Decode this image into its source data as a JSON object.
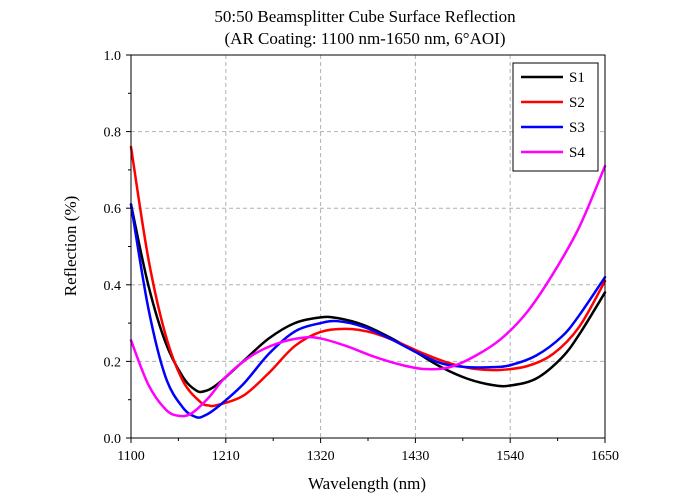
{
  "chart_data": {
    "type": "line",
    "title": "50:50 Beamsplitter Cube  Surface Reflection",
    "subtitle": "(AR Coating: 1100 nm-1650 nm, 6°AOI)",
    "xlabel": "Wavelength (nm)",
    "ylabel": "Reflection (%)",
    "xlim": [
      1100,
      1650
    ],
    "ylim": [
      0.0,
      1.0
    ],
    "xticks": [
      1100,
      1210,
      1320,
      1430,
      1540,
      1650
    ],
    "yticks": [
      0.0,
      0.2,
      0.4,
      0.6,
      0.8,
      1.0
    ],
    "xtick_labels": [
      "1100",
      "1210",
      "1320",
      "1430",
      "1540",
      "1650"
    ],
    "ytick_labels": [
      "0.0",
      "0.2",
      "0.4",
      "0.6",
      "0.8",
      "1.0"
    ],
    "grid": true,
    "legend_position": "top-right",
    "series": [
      {
        "name": "S1",
        "color": "#000000",
        "x": [
          1100,
          1120,
          1140,
          1160,
          1175,
          1185,
          1200,
          1230,
          1260,
          1290,
          1320,
          1340,
          1370,
          1400,
          1430,
          1460,
          1490,
          1520,
          1540,
          1570,
          1600,
          1620,
          1650
        ],
        "y": [
          0.61,
          0.4,
          0.25,
          0.16,
          0.125,
          0.122,
          0.14,
          0.2,
          0.26,
          0.3,
          0.315,
          0.313,
          0.295,
          0.263,
          0.225,
          0.185,
          0.155,
          0.138,
          0.137,
          0.155,
          0.21,
          0.27,
          0.38
        ]
      },
      {
        "name": "S2",
        "color": "#ff0000",
        "x": [
          1100,
          1120,
          1140,
          1160,
          1180,
          1190,
          1200,
          1230,
          1260,
          1290,
          1320,
          1350,
          1380,
          1410,
          1440,
          1470,
          1500,
          1530,
          1560,
          1590,
          1620,
          1650
        ],
        "y": [
          0.76,
          0.47,
          0.27,
          0.15,
          0.095,
          0.085,
          0.086,
          0.11,
          0.17,
          0.24,
          0.277,
          0.285,
          0.275,
          0.25,
          0.22,
          0.195,
          0.18,
          0.178,
          0.188,
          0.22,
          0.29,
          0.41
        ]
      },
      {
        "name": "S3",
        "color": "#0000ff",
        "x": [
          1100,
          1120,
          1140,
          1160,
          1175,
          1185,
          1200,
          1230,
          1260,
          1290,
          1320,
          1340,
          1370,
          1400,
          1430,
          1460,
          1490,
          1520,
          1540,
          1570,
          1600,
          1620,
          1650
        ],
        "y": [
          0.61,
          0.34,
          0.16,
          0.08,
          0.055,
          0.058,
          0.08,
          0.14,
          0.22,
          0.278,
          0.3,
          0.305,
          0.29,
          0.26,
          0.225,
          0.195,
          0.185,
          0.185,
          0.19,
          0.215,
          0.265,
          0.32,
          0.42
        ]
      },
      {
        "name": "S4",
        "color": "#ff00ff",
        "x": [
          1100,
          1120,
          1140,
          1155,
          1170,
          1190,
          1210,
          1240,
          1270,
          1300,
          1320,
          1350,
          1380,
          1410,
          1440,
          1470,
          1500,
          1530,
          1560,
          1590,
          1620,
          1650
        ],
        "y": [
          0.255,
          0.14,
          0.075,
          0.058,
          0.064,
          0.105,
          0.16,
          0.215,
          0.247,
          0.262,
          0.26,
          0.24,
          0.214,
          0.193,
          0.18,
          0.185,
          0.215,
          0.26,
          0.33,
          0.43,
          0.55,
          0.71
        ]
      }
    ]
  }
}
